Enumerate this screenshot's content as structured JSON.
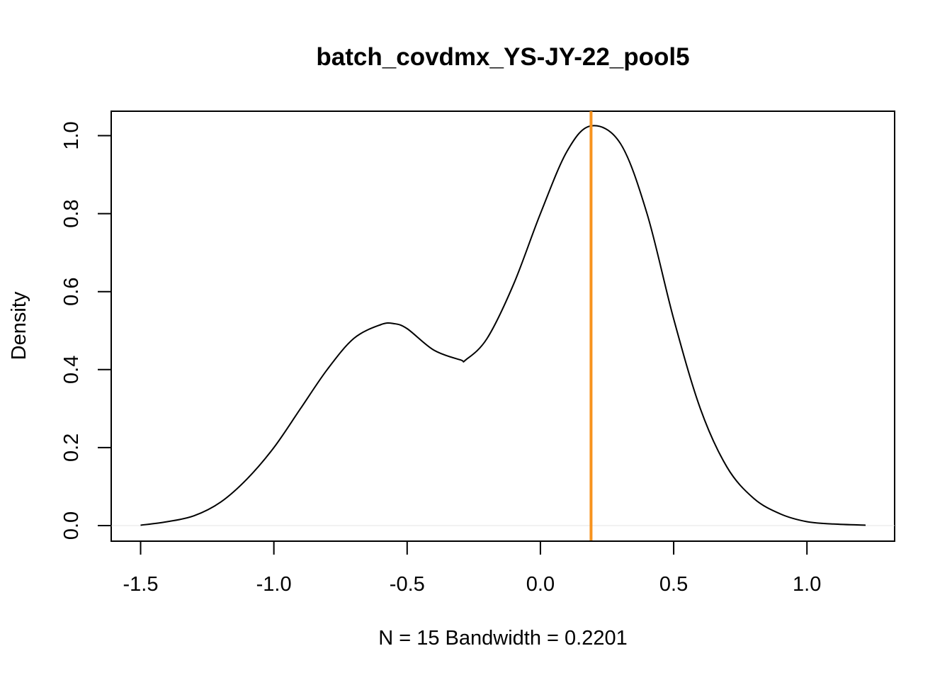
{
  "chart_data": {
    "type": "line",
    "title": "batch_covdmx_YS-JY-22_pool5",
    "xlabel": "N = 15   Bandwidth = 0.2201",
    "ylabel": "Density",
    "xlim": [
      -1.5,
      1.22
    ],
    "ylim": [
      0.0,
      1.03
    ],
    "x_ticks": [
      -1.5,
      -1.0,
      -0.5,
      0.0,
      0.5,
      1.0
    ],
    "x_tick_labels": [
      "-1.5",
      "-1.0",
      "-0.5",
      "0.0",
      "0.5",
      "1.0"
    ],
    "y_ticks": [
      0.0,
      0.2,
      0.4,
      0.6,
      0.8,
      1.0
    ],
    "y_tick_labels": [
      "0.0",
      "0.2",
      "0.4",
      "0.6",
      "0.8",
      "1.0"
    ],
    "grid": false,
    "series": [
      {
        "color": "#000000",
        "x": [
          -1.5,
          -1.4,
          -1.3,
          -1.2,
          -1.1,
          -1.0,
          -0.9,
          -0.8,
          -0.7,
          -0.6,
          -0.55,
          -0.5,
          -0.4,
          -0.3,
          -0.28,
          -0.2,
          -0.1,
          0.0,
          0.1,
          0.19,
          0.3,
          0.4,
          0.5,
          0.6,
          0.7,
          0.8,
          0.9,
          1.0,
          1.1,
          1.22
        ],
        "y": [
          0.001,
          0.01,
          0.025,
          0.06,
          0.12,
          0.2,
          0.3,
          0.4,
          0.48,
          0.515,
          0.518,
          0.505,
          0.45,
          0.425,
          0.425,
          0.48,
          0.62,
          0.8,
          0.96,
          1.025,
          0.98,
          0.8,
          0.53,
          0.3,
          0.15,
          0.07,
          0.03,
          0.01,
          0.004,
          0.001
        ]
      }
    ],
    "reference_line": {
      "orientation": "vertical",
      "x": 0.19,
      "color": "#F7931E"
    },
    "baseline_color": "#E6E6E6"
  }
}
